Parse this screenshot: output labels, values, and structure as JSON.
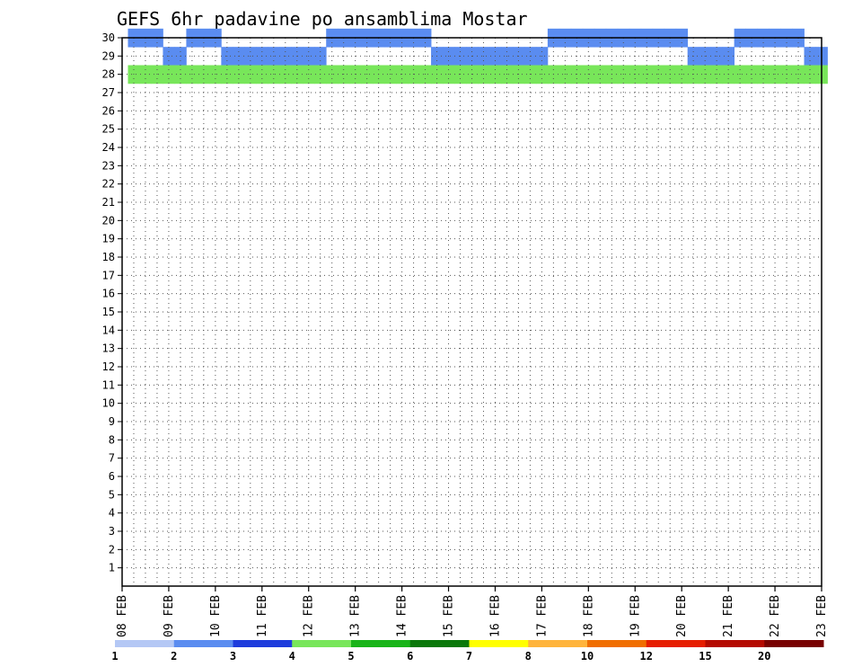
{
  "chart_data": {
    "type": "heatmap",
    "title": "GEFS 6hr padavine po ansamblima Mostar",
    "xlabel": "",
    "ylabel": "",
    "y_ticks": [
      "1",
      "2",
      "3",
      "4",
      "5",
      "6",
      "7",
      "8",
      "9",
      "10",
      "11",
      "12",
      "13",
      "14",
      "15",
      "16",
      "17",
      "18",
      "19",
      "20",
      "21",
      "22",
      "23",
      "24",
      "25",
      "26",
      "27",
      "28",
      "29",
      "30"
    ],
    "x_ticks": [
      "08 FEB",
      "09 FEB",
      "10 FEB",
      "11 FEB",
      "12 FEB",
      "13 FEB",
      "14 FEB",
      "15 FEB",
      "16 FEB",
      "17 FEB",
      "18 FEB",
      "19 FEB",
      "20 FEB",
      "21 FEB",
      "22 FEB",
      "23 FEB"
    ],
    "x_range_steps": [
      0,
      60
    ],
    "y_range": [
      0,
      30
    ],
    "grid": true,
    "legend_placement": "bottom",
    "colorbar": {
      "colors": [
        "#b4c8f5",
        "#5a8cf0",
        "#1e3cdc",
        "#78e65a",
        "#19b419",
        "#0a780a",
        "#ffff00",
        "#ffb43c",
        "#f06e00",
        "#e61e00",
        "#b40a00",
        "#780000"
      ],
      "labels": [
        "1",
        "2",
        "3",
        "4",
        "5",
        "6",
        "7",
        "8",
        "10",
        "12",
        "15",
        "20"
      ],
      "label_positions": [
        0,
        1,
        2,
        3,
        4,
        5,
        6,
        7,
        8,
        9,
        10,
        11
      ]
    },
    "cells": [
      [
        1,
        30,
        1
      ],
      [
        2,
        30,
        1
      ],
      [
        3,
        30,
        1
      ],
      [
        4,
        29,
        1
      ],
      [
        5,
        29,
        1
      ],
      [
        6,
        30,
        1
      ],
      [
        7,
        30,
        1
      ],
      [
        8,
        30,
        1
      ],
      [
        9,
        29,
        1
      ],
      [
        10,
        29,
        1
      ],
      [
        11,
        29,
        1
      ],
      [
        12,
        29,
        1
      ],
      [
        13,
        29,
        1
      ],
      [
        14,
        29,
        1
      ],
      [
        15,
        29,
        1
      ],
      [
        16,
        29,
        1
      ],
      [
        17,
        29,
        1
      ],
      [
        18,
        30,
        1
      ],
      [
        19,
        30,
        1
      ],
      [
        20,
        30,
        1
      ],
      [
        21,
        30,
        1
      ],
      [
        22,
        30,
        1
      ],
      [
        23,
        30,
        1
      ],
      [
        24,
        30,
        1
      ],
      [
        25,
        30,
        1
      ],
      [
        26,
        30,
        1
      ],
      [
        27,
        29,
        1
      ],
      [
        28,
        29,
        1
      ],
      [
        29,
        29,
        1
      ],
      [
        30,
        29,
        1
      ],
      [
        31,
        29,
        1
      ],
      [
        32,
        29,
        1
      ],
      [
        33,
        29,
        1
      ],
      [
        34,
        29,
        1
      ],
      [
        35,
        29,
        1
      ],
      [
        36,
        29,
        1
      ],
      [
        37,
        30,
        1
      ],
      [
        38,
        30,
        1
      ],
      [
        39,
        30,
        1
      ],
      [
        40,
        30,
        1
      ],
      [
        41,
        30,
        1
      ],
      [
        42,
        30,
        1
      ],
      [
        43,
        30,
        1
      ],
      [
        44,
        30,
        1
      ],
      [
        45,
        30,
        1
      ],
      [
        46,
        30,
        1
      ],
      [
        47,
        30,
        1
      ],
      [
        48,
        30,
        1
      ],
      [
        49,
        29,
        1
      ],
      [
        50,
        29,
        1
      ],
      [
        51,
        29,
        1
      ],
      [
        52,
        29,
        1
      ],
      [
        53,
        30,
        1
      ],
      [
        54,
        30,
        1
      ],
      [
        55,
        30,
        1
      ],
      [
        56,
        30,
        1
      ],
      [
        57,
        30,
        1
      ],
      [
        58,
        30,
        1
      ],
      [
        59,
        29,
        1
      ],
      [
        60,
        29,
        1
      ],
      [
        1,
        28,
        3
      ],
      [
        2,
        28,
        3
      ],
      [
        3,
        28,
        3
      ],
      [
        4,
        28,
        3
      ],
      [
        5,
        28,
        3
      ],
      [
        6,
        28,
        3
      ],
      [
        7,
        28,
        3
      ],
      [
        8,
        28,
        3
      ],
      [
        9,
        28,
        3
      ],
      [
        10,
        28,
        3
      ],
      [
        11,
        28,
        3
      ],
      [
        12,
        28,
        3
      ],
      [
        13,
        28,
        3
      ],
      [
        14,
        28,
        3
      ],
      [
        15,
        28,
        3
      ],
      [
        16,
        28,
        3
      ],
      [
        17,
        28,
        3
      ],
      [
        18,
        28,
        3
      ],
      [
        19,
        28,
        3
      ],
      [
        20,
        28,
        3
      ],
      [
        21,
        28,
        3
      ],
      [
        22,
        28,
        3
      ],
      [
        23,
        28,
        3
      ],
      [
        24,
        28,
        3
      ],
      [
        25,
        28,
        3
      ],
      [
        26,
        28,
        3
      ],
      [
        27,
        28,
        3
      ],
      [
        28,
        28,
        3
      ],
      [
        29,
        28,
        3
      ],
      [
        30,
        28,
        3
      ],
      [
        31,
        28,
        3
      ],
      [
        32,
        28,
        3
      ],
      [
        33,
        28,
        3
      ],
      [
        34,
        28,
        3
      ],
      [
        35,
        28,
        3
      ],
      [
        36,
        28,
        3
      ],
      [
        37,
        28,
        3
      ],
      [
        38,
        28,
        3
      ],
      [
        39,
        28,
        3
      ],
      [
        40,
        28,
        3
      ],
      [
        41,
        28,
        3
      ],
      [
        42,
        28,
        3
      ],
      [
        43,
        28,
        3
      ],
      [
        44,
        28,
        3
      ],
      [
        45,
        28,
        3
      ],
      [
        46,
        28,
        3
      ],
      [
        47,
        28,
        3
      ],
      [
        48,
        28,
        3
      ],
      [
        49,
        28,
        3
      ],
      [
        50,
        28,
        3
      ],
      [
        51,
        28,
        3
      ],
      [
        52,
        28,
        3
      ],
      [
        53,
        28,
        3
      ],
      [
        54,
        28,
        3
      ],
      [
        55,
        28,
        3
      ],
      [
        56,
        28,
        3
      ],
      [
        57,
        28,
        3
      ],
      [
        58,
        28,
        3
      ],
      [
        59,
        28,
        3
      ],
      [
        60,
        28,
        3
      ]
    ]
  }
}
